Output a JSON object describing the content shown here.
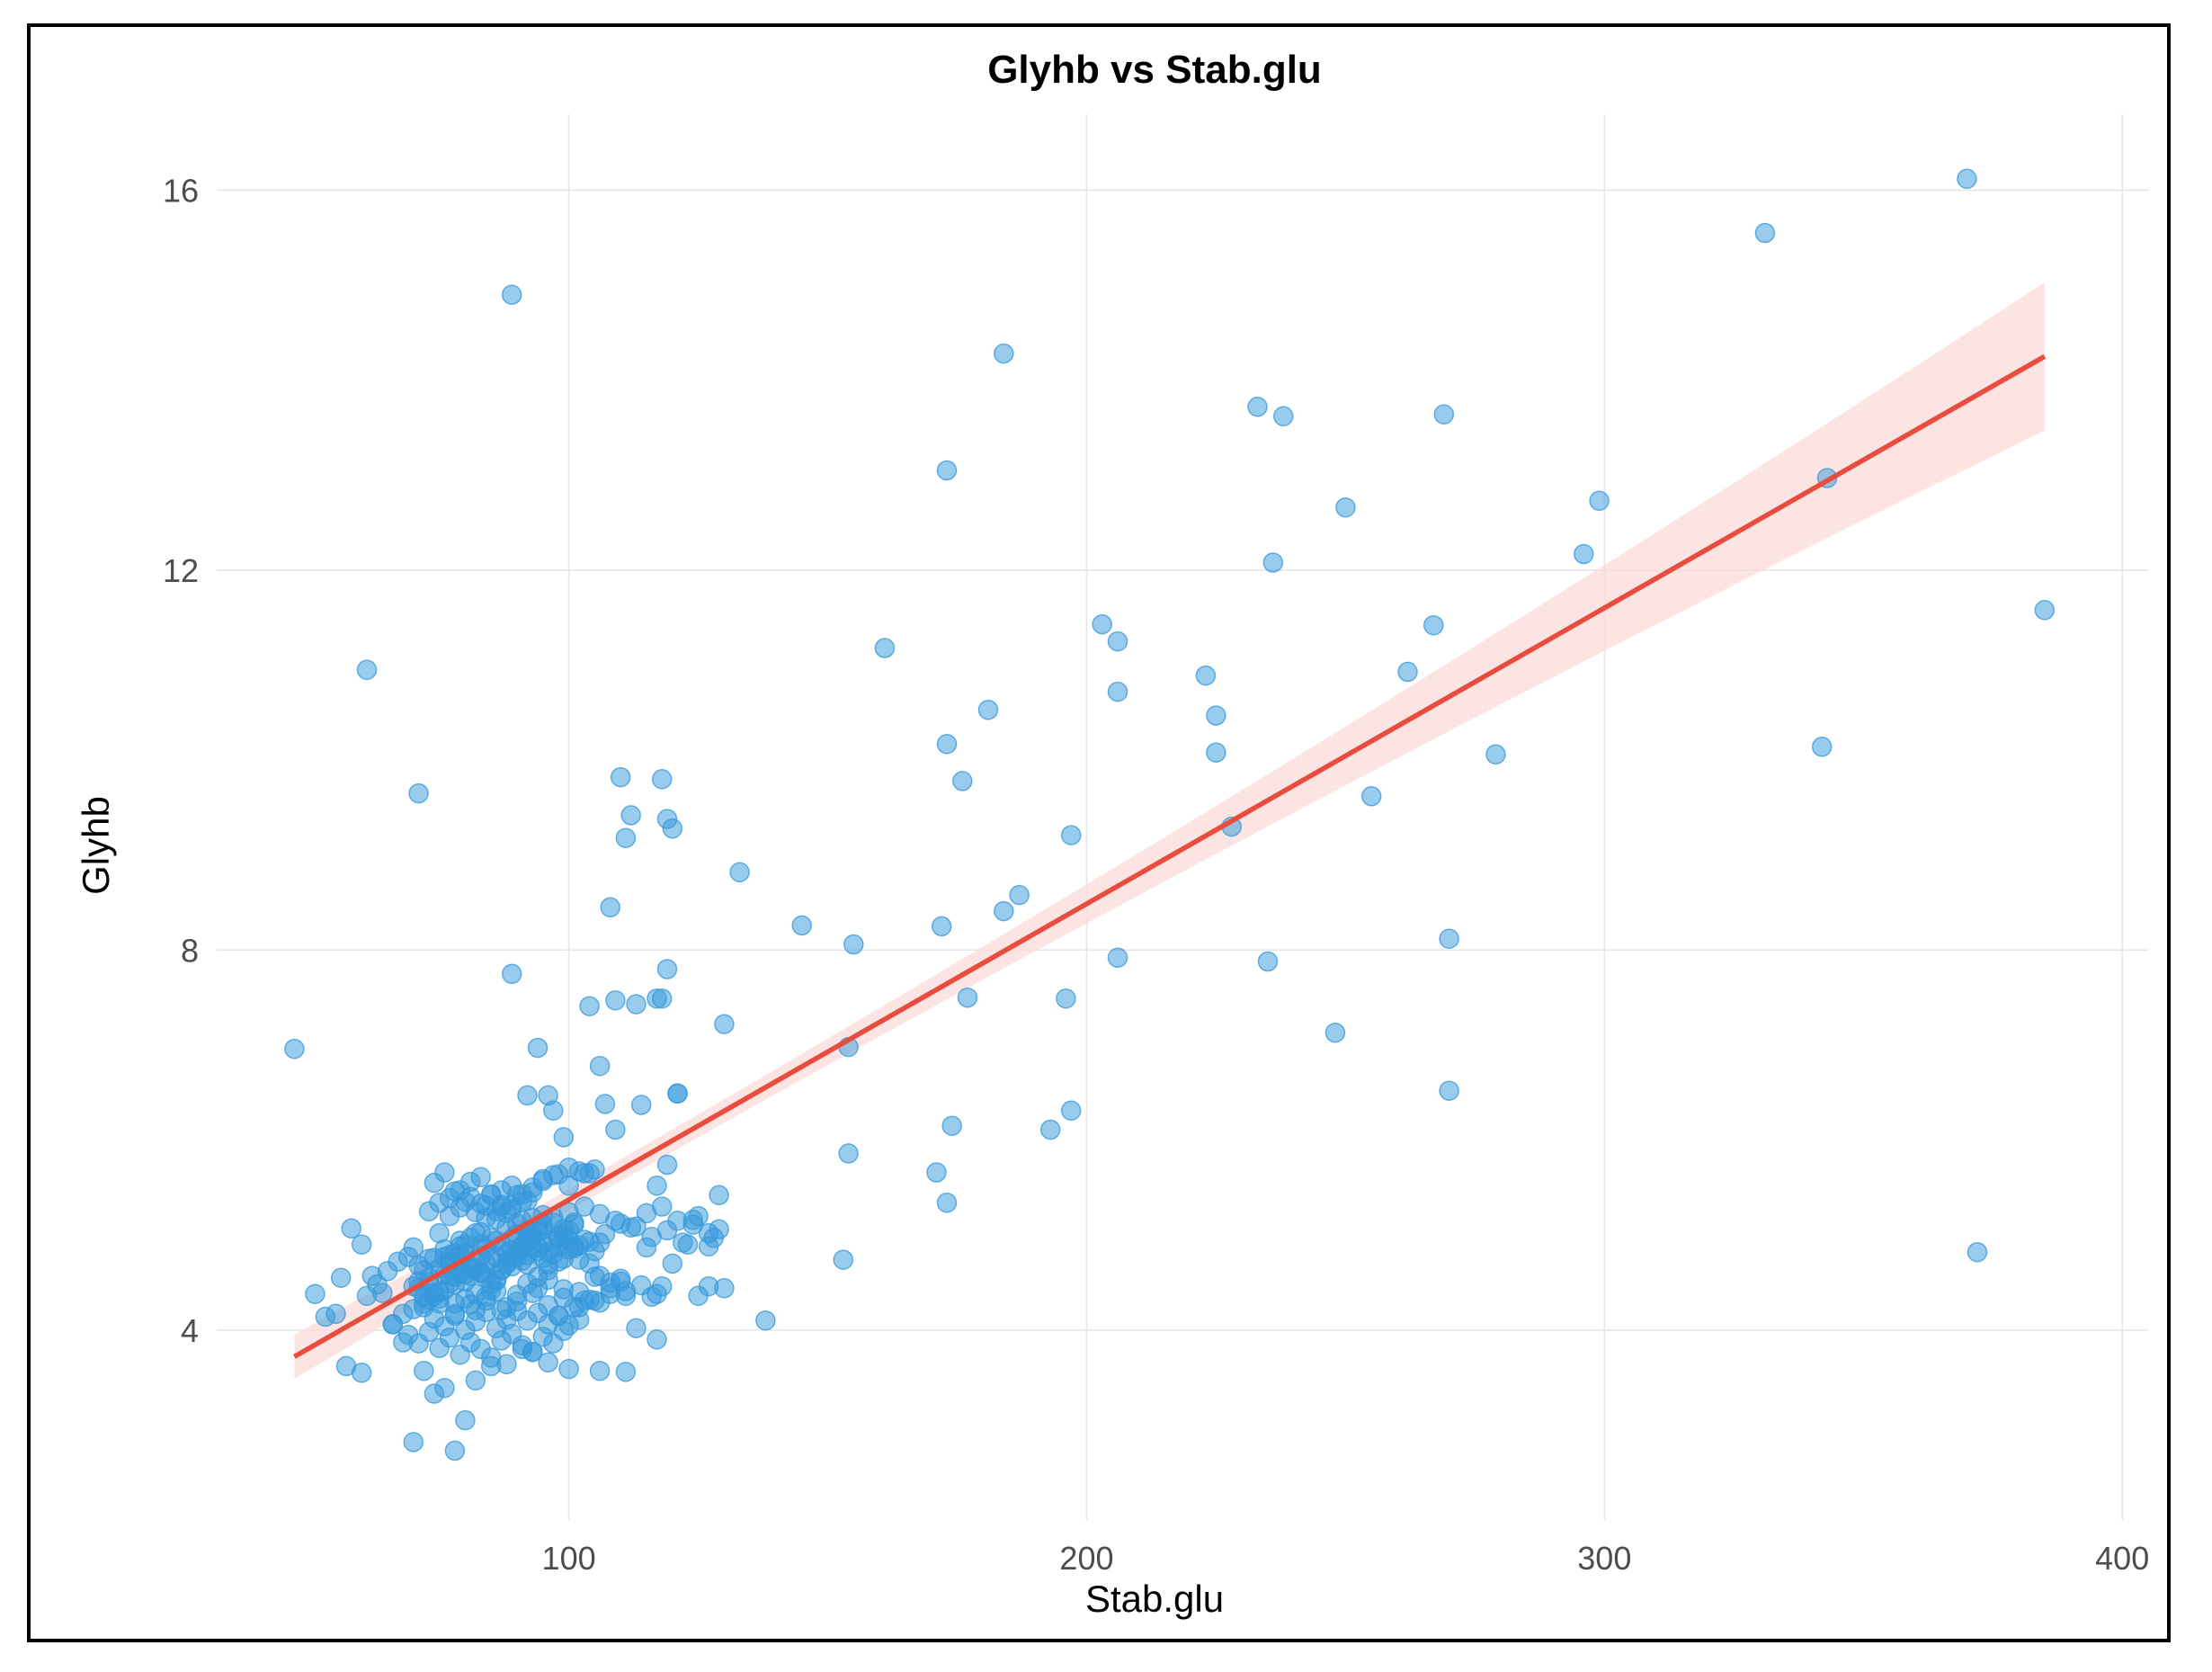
{
  "chart_data": {
    "type": "scatter",
    "title": "Glyhb vs Stab.glu",
    "xlabel": "Stab.glu",
    "ylabel": "Glyhb",
    "xlim": [
      32,
      405
    ],
    "ylim": [
      2.0,
      16.8
    ],
    "x_ticks": [
      100,
      200,
      300,
      400
    ],
    "y_ticks": [
      4,
      8,
      12,
      16
    ],
    "x_tick_labels": [
      "100",
      "200",
      "300",
      "400"
    ],
    "y_tick_labels": [
      "4",
      "8",
      "12",
      "16"
    ],
    "grid": true,
    "legend": "none",
    "colors": {
      "points": "#3498db",
      "fit_line": "#e74c3c",
      "confidence_band": "#fadbd8"
    },
    "fit": {
      "method": "linear",
      "x_range": [
        47,
        385
      ],
      "y_at_start": 3.72,
      "y_at_end": 14.25,
      "band_halfwidth_at_start": 0.23,
      "band_halfwidth_at_min": 0.11,
      "band_halfwidth_at_end": 0.78,
      "band_min_x": 88
    },
    "series": [
      {
        "x": [
          47,
          60,
          61,
          71,
          89,
          89,
          173,
          184,
          233,
          238,
          250,
          269,
          299,
          296,
          236,
          203,
          206,
          206,
          223,
          225,
          225,
          262,
          267,
          279,
          255,
          228,
          181,
          173,
          161,
          176,
          331,
          370,
          343,
          385,
          342,
          372,
          270,
          270,
          248,
          235,
          206,
          197,
          196,
          187,
          184,
          172,
          155,
          154,
          177,
          174,
          145,
          133,
          121,
          121,
          130,
          129,
          138,
          153,
          154,
          171,
          173,
          193,
          197,
          110,
          118,
          111,
          119,
          120,
          112,
          108,
          109,
          119,
          117,
          113,
          104,
          118,
          106,
          94,
          107,
          97,
          92,
          96,
          99,
          100,
          103,
          109,
          114,
          105,
          119,
          117,
          124,
          129,
          125,
          128,
          127,
          123,
          115,
          120,
          118,
          110,
          111,
          108,
          106,
          103,
          101,
          98,
          94,
          92,
          96,
          99,
          102,
          105,
          110,
          113,
          116,
          125,
          127,
          130,
          117,
          111,
          106,
          100,
          96,
          93,
          91,
          88,
          85,
          82,
          80,
          78,
          76,
          74,
          72,
          70,
          68,
          66,
          64,
          62,
          60,
          58,
          56,
          55,
          53,
          51,
          57,
          61,
          63,
          65,
          67,
          69,
          71,
          73,
          75,
          77,
          79,
          81,
          83,
          84,
          86,
          87,
          89,
          90,
          92,
          93,
          95,
          97,
          98,
          100,
          102,
          104,
          75,
          76,
          77,
          78,
          79,
          80,
          81,
          82,
          83,
          84,
          85,
          86,
          87,
          88,
          89,
          90,
          91,
          92,
          93,
          94,
          95,
          78,
          80,
          82,
          84,
          86,
          88,
          90,
          92,
          94,
          96,
          98,
          100,
          77,
          79,
          81,
          83,
          85,
          87,
          89,
          91,
          93,
          95,
          97,
          99,
          101,
          74,
          76,
          78,
          80,
          82,
          84,
          86,
          88,
          90,
          92,
          72,
          73,
          74,
          75,
          76,
          77,
          78,
          79,
          80,
          81,
          82,
          83,
          84,
          85,
          86,
          87,
          88,
          89,
          90,
          91,
          92,
          93,
          94,
          95,
          96,
          97,
          98,
          99,
          100,
          101,
          102,
          103,
          104,
          105,
          106,
          70,
          71,
          72,
          73,
          74,
          75,
          76,
          77,
          78,
          79,
          80,
          81,
          82,
          83,
          84,
          85,
          86,
          87,
          88,
          89,
          90,
          91,
          92,
          93,
          94,
          95,
          96,
          97,
          98,
          99,
          100,
          101,
          102,
          66,
          68,
          70,
          72,
          74,
          76,
          78,
          80,
          82,
          84,
          86,
          88,
          90,
          92,
          94,
          96,
          98,
          100,
          102,
          104,
          106,
          108,
          69,
          71,
          73,
          75,
          77,
          79,
          81,
          83,
          85,
          87,
          89,
          91,
          93,
          95,
          97,
          99,
          73,
          75,
          77,
          79,
          81,
          83,
          85,
          87,
          89,
          91,
          93,
          95,
          70,
          73,
          76,
          79,
          82,
          85,
          88,
          91,
          94,
          97,
          100,
          103,
          106,
          109,
          112,
          115,
          118,
          121,
          124,
          127,
          71,
          74,
          77,
          80,
          83,
          86,
          89,
          92,
          95,
          98,
          101,
          104,
          107,
          110,
          113,
          116,
          119,
          122,
          72,
          75,
          78,
          81,
          84,
          87,
          90,
          93,
          96,
          99,
          102,
          105,
          108,
          111,
          114,
          117
        ],
        "y": [
          6.96,
          3.55,
          10.95,
          9.65,
          14.9,
          7.75,
          13.05,
          14.28,
          13.72,
          13.62,
          12.66,
          13.64,
          12.73,
          12.17,
          12.08,
          11.43,
          11.25,
          10.72,
          10.89,
          10.47,
          10.08,
          10.93,
          11.42,
          10.06,
          9.62,
          9.3,
          10.53,
          10.17,
          11.18,
          9.78,
          15.55,
          16.12,
          12.97,
          11.58,
          10.14,
          4.82,
          8.12,
          6.52,
          7.13,
          7.88,
          7.92,
          9.21,
          7.49,
          8.58,
          8.41,
          8.25,
          8.06,
          6.98,
          7.5,
          6.15,
          8.26,
          8.82,
          6.49,
          6.49,
          7.22,
          5.42,
          4.1,
          4.74,
          5.86,
          5.66,
          5.34,
          6.11,
          6.31,
          9.82,
          9.8,
          9.18,
          9.38,
          9.28,
          9.42,
          8.45,
          7.47,
          7.8,
          7.49,
          7.43,
          7.41,
          7.49,
          6.78,
          6.97,
          6.38,
          6.31,
          6.47,
          6.47,
          6.03,
          5.52,
          5.65,
          6.11,
          6.37,
          5.69,
          5.74,
          5.52,
          5.16,
          5.06,
          5.2,
          4.97,
          4.88,
          4.9,
          4.87,
          4.7,
          4.46,
          4.51,
          4.41,
          4.5,
          4.57,
          4.31,
          4.24,
          4.15,
          4.44,
          4.69,
          4.53,
          4.43,
          4.11,
          4.56,
          4.54,
          4.02,
          4.35,
          4.36,
          4.46,
          4.44,
          3.9,
          3.56,
          3.57,
          3.59,
          3.66,
          3.77,
          3.8,
          3.64,
          3.62,
          3.47,
          3.05,
          2.73,
          3.39,
          3.33,
          3.57,
          2.82,
          3.87,
          4.06,
          4.39,
          4.57,
          4.9,
          5.07,
          4.55,
          4.17,
          4.14,
          4.38,
          3.62,
          4.36,
          4.48,
          4.62,
          4.72,
          4.77,
          4.51,
          4.55,
          4.65,
          4.79,
          4.88,
          4.97,
          5.03,
          5.18,
          5.25,
          5.3,
          5.31,
          5.42,
          5.36,
          5.45,
          5.57,
          5.63,
          5.64,
          5.71,
          5.67,
          5.65,
          5.02,
          4.77,
          4.58,
          4.48,
          4.79,
          4.9,
          4.65,
          4.38,
          4.6,
          4.7,
          4.42,
          4.52,
          4.63,
          4.69,
          4.76,
          4.82,
          4.88,
          4.93,
          4.99,
          5.04,
          5.1,
          4.28,
          4.33,
          4.21,
          4.31,
          4.41,
          4.24,
          4.37,
          4.49,
          4.56,
          4.63,
          4.72,
          4.85,
          5.39,
          5.47,
          5.56,
          5.61,
          5.42,
          5.32,
          5.27,
          5.35,
          5.18,
          5.21,
          5.13,
          5.06,
          5.13,
          5.55,
          5.66,
          5.46,
          5.35,
          5.24,
          5.31,
          5.17,
          5.23,
          5.12,
          5.05,
          4.63,
          4.5,
          4.39,
          4.28,
          4.58,
          4.72,
          4.81,
          4.69,
          4.59,
          4.67,
          4.73,
          4.78,
          4.86,
          4.74,
          4.94,
          4.89,
          4.81,
          4.96,
          5.01,
          4.89,
          5.02,
          4.97,
          4.87,
          4.9,
          4.82,
          4.93,
          4.97,
          5.0,
          5.05,
          5.11,
          4.89,
          4.95,
          4.7,
          4.83,
          4.92,
          4.46,
          4.44,
          4.35,
          4.32,
          4.36,
          4.4,
          4.42,
          4.49,
          4.56,
          4.6,
          4.51,
          4.57,
          4.64,
          4.61,
          4.55,
          4.48,
          4.53,
          4.63,
          4.71,
          4.67,
          4.77,
          4.73,
          4.79,
          4.86,
          4.83,
          4.76,
          4.69,
          4.8,
          4.88,
          4.75,
          4.95,
          4.86,
          4.74,
          4.06,
          4.17,
          4.22,
          4.28,
          4.12,
          4.04,
          4.15,
          4.0,
          4.09,
          4.19,
          4.02,
          4.11,
          4.2,
          4.1,
          4.18,
          4.06,
          4.15,
          4.05,
          4.24,
          4.32,
          4.29,
          4.38,
          3.95,
          3.86,
          3.98,
          3.81,
          3.92,
          3.74,
          3.87,
          3.8,
          3.71,
          3.89,
          3.96,
          3.84,
          3.77,
          3.93,
          3.86,
          3.99,
          5.25,
          5.34,
          5.2,
          5.29,
          5.4,
          5.33,
          5.43,
          5.47,
          5.52,
          5.43,
          5.5,
          5.59,
          4.87,
          4.75,
          4.85,
          4.94,
          5.02,
          4.97,
          5.08,
          5.15,
          5.09,
          5.18,
          5.24,
          5.3,
          5.22,
          5.15,
          5.08,
          5.23,
          5.3,
          5.15,
          5.11,
          5.02,
          4.68,
          4.76,
          4.7,
          4.81,
          4.9,
          4.77,
          4.84,
          4.96,
          5.06,
          4.99,
          4.88,
          4.93,
          5.01,
          5.12,
          5.09,
          4.98,
          5.05,
          4.92,
          4.24,
          4.33,
          4.17,
          4.27,
          4.35,
          4.21,
          4.3,
          4.39,
          4.26,
          4.34,
          4.4,
          4.31,
          4.44,
          4.36,
          4.47,
          4.38
        ]
      }
    ]
  }
}
